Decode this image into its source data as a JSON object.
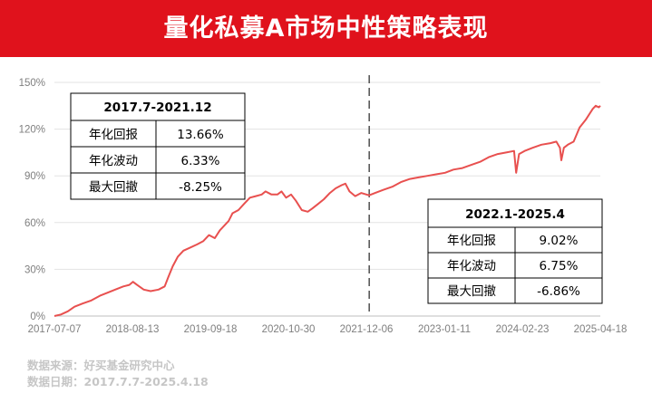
{
  "header": {
    "title": "量化私募A市场中性策略表现"
  },
  "chart_data": {
    "type": "line",
    "title": "",
    "xlabel": "",
    "ylabel": "",
    "ylim": [
      0,
      150
    ],
    "yticks": [
      0,
      30,
      60,
      90,
      120,
      150
    ],
    "ytick_labels": [
      "0%",
      "30%",
      "60%",
      "90%",
      "120%",
      "150%"
    ],
    "x_range": [
      "2017-07-07",
      "2025-04-18"
    ],
    "xtick_labels": [
      "2017-07-07",
      "2018-08-13",
      "2019-09-18",
      "2020-10-30",
      "2021-12-06",
      "2023-01-11",
      "2024-02-23",
      "2025-04-18"
    ],
    "grid": "horizontal",
    "line_color": "#e8504f",
    "divider": {
      "x": "2022-01-01",
      "style": "dashed"
    },
    "series": [
      {
        "name": "",
        "points": [
          [
            "2017-07-07",
            0
          ],
          [
            "2017-08-10",
            1
          ],
          [
            "2017-09-15",
            3
          ],
          [
            "2017-10-20",
            6
          ],
          [
            "2017-12-01",
            8
          ],
          [
            "2018-01-15",
            10
          ],
          [
            "2018-03-01",
            13
          ],
          [
            "2018-04-10",
            15
          ],
          [
            "2018-05-20",
            17
          ],
          [
            "2018-07-01",
            19
          ],
          [
            "2018-08-01",
            20
          ],
          [
            "2018-08-20",
            22
          ],
          [
            "2018-09-10",
            20
          ],
          [
            "2018-10-15",
            17
          ],
          [
            "2018-11-20",
            16
          ],
          [
            "2018-12-31",
            17
          ],
          [
            "2019-02-01",
            19
          ],
          [
            "2019-02-20",
            25
          ],
          [
            "2019-03-15",
            32
          ],
          [
            "2019-04-10",
            38
          ],
          [
            "2019-05-10",
            42
          ],
          [
            "2019-06-15",
            44
          ],
          [
            "2019-07-20",
            46
          ],
          [
            "2019-08-20",
            48
          ],
          [
            "2019-09-20",
            52
          ],
          [
            "2019-10-20",
            50
          ],
          [
            "2019-11-15",
            55
          ],
          [
            "2019-12-31",
            61
          ],
          [
            "2020-01-20",
            66
          ],
          [
            "2020-02-20",
            68
          ],
          [
            "2020-03-20",
            72
          ],
          [
            "2020-04-20",
            76
          ],
          [
            "2020-05-20",
            77
          ],
          [
            "2020-06-20",
            78
          ],
          [
            "2020-07-10",
            80
          ],
          [
            "2020-08-10",
            78
          ],
          [
            "2020-09-10",
            78
          ],
          [
            "2020-10-01",
            80
          ],
          [
            "2020-10-25",
            76
          ],
          [
            "2020-11-20",
            78
          ],
          [
            "2020-12-15",
            74
          ],
          [
            "2021-01-15",
            68
          ],
          [
            "2021-02-15",
            67
          ],
          [
            "2021-03-10",
            69
          ],
          [
            "2021-04-10",
            72
          ],
          [
            "2021-05-10",
            75
          ],
          [
            "2021-06-10",
            79
          ],
          [
            "2021-07-10",
            82
          ],
          [
            "2021-08-10",
            84
          ],
          [
            "2021-08-30",
            85
          ],
          [
            "2021-09-20",
            80
          ],
          [
            "2021-10-20",
            77
          ],
          [
            "2021-11-20",
            79
          ],
          [
            "2021-12-31",
            77.5
          ],
          [
            "2022-02-01",
            79
          ],
          [
            "2022-03-15",
            81
          ],
          [
            "2022-05-01",
            83
          ],
          [
            "2022-06-15",
            86
          ],
          [
            "2022-08-01",
            88
          ],
          [
            "2022-09-15",
            89
          ],
          [
            "2022-10-31",
            90
          ],
          [
            "2022-12-15",
            91
          ],
          [
            "2023-01-31",
            92
          ],
          [
            "2023-03-15",
            94
          ],
          [
            "2023-05-01",
            95
          ],
          [
            "2023-06-15",
            97
          ],
          [
            "2023-08-01",
            99
          ],
          [
            "2023-09-15",
            102
          ],
          [
            "2023-11-01",
            104
          ],
          [
            "2023-12-15",
            105
          ],
          [
            "2024-01-25",
            106
          ],
          [
            "2024-02-05",
            92
          ],
          [
            "2024-02-20",
            104
          ],
          [
            "2024-03-20",
            106
          ],
          [
            "2024-05-01",
            108
          ],
          [
            "2024-06-15",
            110
          ],
          [
            "2024-08-01",
            111
          ],
          [
            "2024-09-01",
            112
          ],
          [
            "2024-09-20",
            108
          ],
          [
            "2024-09-27",
            100
          ],
          [
            "2024-10-10",
            108
          ],
          [
            "2024-10-31",
            110
          ],
          [
            "2024-11-30",
            112
          ],
          [
            "2024-12-31",
            121
          ],
          [
            "2025-02-01",
            126
          ],
          [
            "2025-03-10",
            133
          ],
          [
            "2025-03-25",
            135
          ],
          [
            "2025-04-10",
            134
          ],
          [
            "2025-04-18",
            135
          ]
        ]
      }
    ],
    "stats_periods": [
      {
        "title": "2017.7-2021.12",
        "rows": [
          {
            "label": "年化回报",
            "value": "13.66%"
          },
          {
            "label": "年化波动",
            "value": "6.33%"
          },
          {
            "label": "最大回撤",
            "value": "-8.25%"
          }
        ]
      },
      {
        "title": "2022.1-2025.4",
        "rows": [
          {
            "label": "年化回报",
            "value": "9.02%"
          },
          {
            "label": "年化波动",
            "value": "6.75%"
          },
          {
            "label": "最大回撤",
            "value": "-6.86%"
          }
        ]
      }
    ]
  },
  "footer": {
    "source": "数据来源：好买基金研究中心",
    "date": "数据日期：2017.7.7-2025.4.18"
  }
}
